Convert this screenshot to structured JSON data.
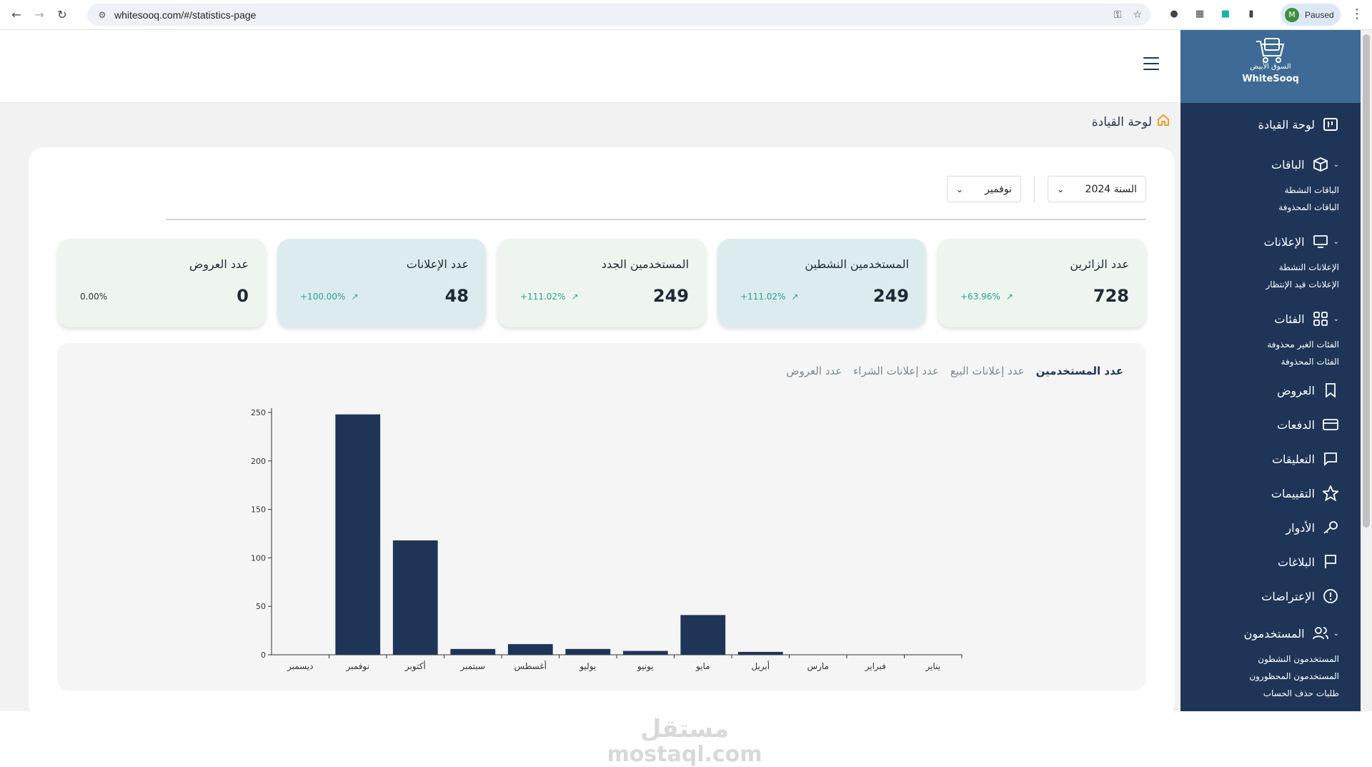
{
  "browser": {
    "url": "whitesooq.com/#/statistics-page",
    "profile_initial": "M",
    "profile_status": "Paused"
  },
  "breadcrumb": {
    "title": "لوحة القيادة"
  },
  "filters": {
    "year_label": "السنة 2024",
    "month_label": "نوفمير"
  },
  "stats": [
    {
      "label": "عدد الزائرين",
      "value": "728",
      "trend": "+63.96%",
      "style": "green"
    },
    {
      "label": "المستخدمين النشطين",
      "value": "249",
      "trend": "+111.02%",
      "style": "blue"
    },
    {
      "label": "المستخدمين الجدد",
      "value": "249",
      "trend": "+111.02%",
      "style": "green"
    },
    {
      "label": "عدد الإعلانات",
      "value": "48",
      "trend": "+100.00%",
      "style": "blue"
    },
    {
      "label": "عدد العروض",
      "value": "0",
      "trend": "0.00%",
      "style": "green"
    }
  ],
  "chart_tabs": [
    "عدد المستخدمين",
    "عدد إعلانات البيع",
    "عدد إعلانات الشراء",
    "عدد العروض"
  ],
  "chart_data": {
    "type": "bar",
    "categories": [
      "ديسمبر",
      "نوفمبر",
      "أكتوبر",
      "سبتمبر",
      "أغسطس",
      "يوليو",
      "يونيو",
      "مايو",
      "أبريل",
      "مارس",
      "فبراير",
      "يناير"
    ],
    "values": [
      0,
      248,
      118,
      6,
      11,
      6,
      4,
      41,
      3,
      0,
      0,
      0
    ],
    "yticks": [
      0,
      50,
      100,
      150,
      200,
      250
    ],
    "ylim": [
      0,
      250
    ],
    "bar_color": "#1f3558"
  },
  "sidebar": {
    "logo_ar": "السوق الأبيض",
    "logo_en": "WhiteSooq",
    "dashboard": "لوحة القيادة",
    "packages": "الباقات",
    "packages_active": "الباقات النشطة",
    "packages_deleted": "الباقات المحذوفة",
    "ads": "الإعلانات",
    "ads_active": "الإعلانات النشطة",
    "ads_pending": "الإعلانات قيد الإنتظار",
    "categories": "الفئات",
    "categories_active": "الفئات الغير محذوفة",
    "categories_deleted": "الفئات المحذوفة",
    "offers": "العروض",
    "payments": "الدفعات",
    "comments": "التعليقات",
    "ratings": "التقييمات",
    "roles": "الأدوار",
    "reports": "البلاغات",
    "objections": "الإعتراضات",
    "users": "المستخدمون",
    "users_active": "المستخدمون النشطون",
    "users_banned": "المستخدمون المحظورون",
    "users_delete_requests": "طلبات حذف الحساب"
  },
  "watermark": {
    "ar": "مستقل",
    "en": "mostaql.com"
  },
  "colors": {
    "sidebar": "#1f3558",
    "logo_bg": "#3e6a95",
    "accent": "#f29a2e",
    "trend": "#29a391"
  }
}
